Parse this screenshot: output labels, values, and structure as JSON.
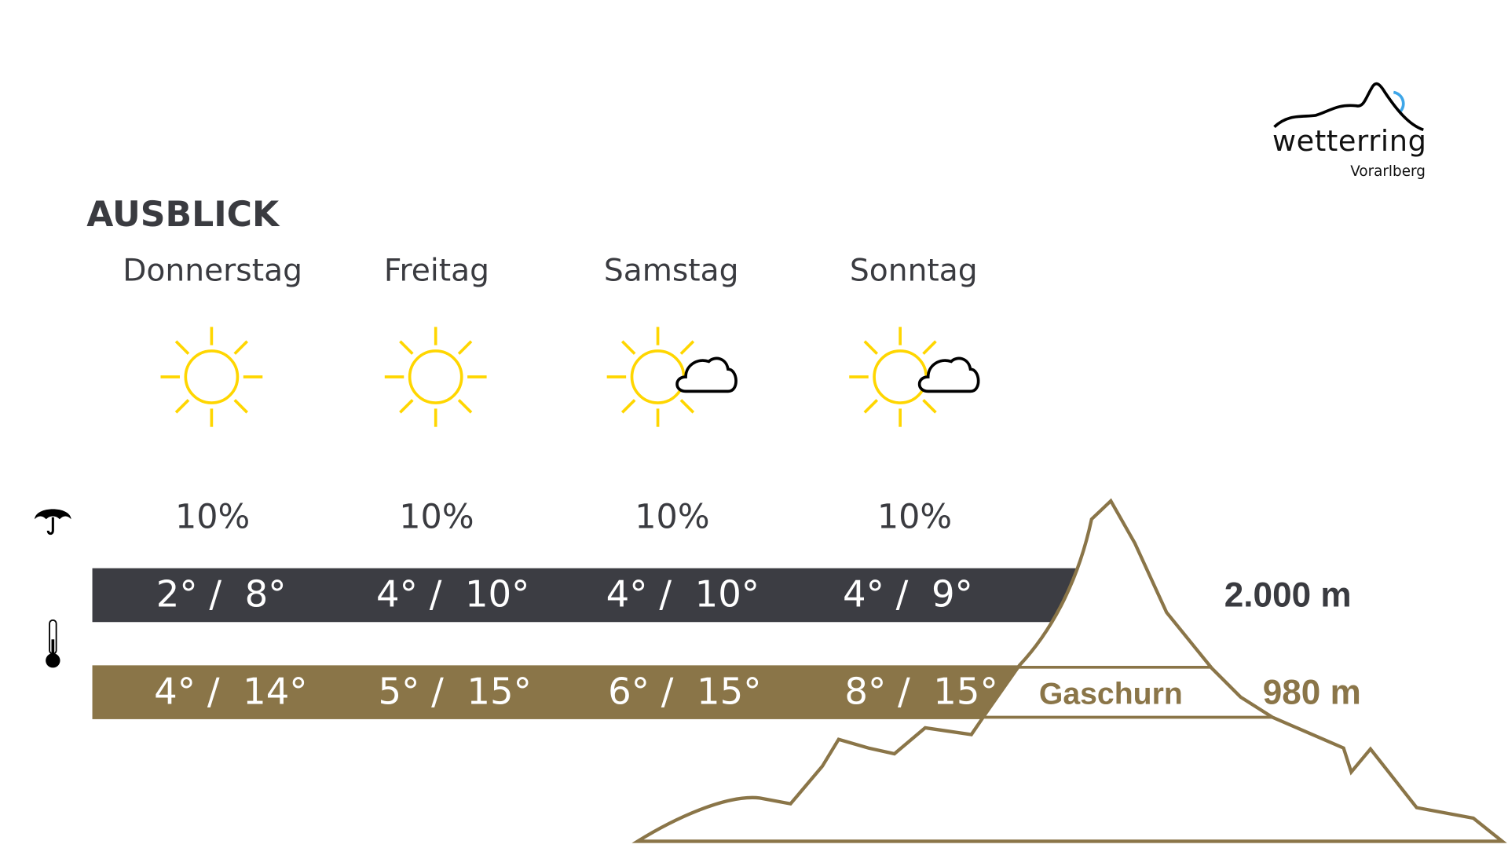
{
  "logo": {
    "name": "wetterring",
    "region": "Vorarlberg",
    "colors": {
      "line": "#000000",
      "sun": "#3ea6e8"
    }
  },
  "title": "AUSBLICK",
  "days": [
    {
      "name": "Donnerstag",
      "icon": "sun-icon",
      "rain": "10%",
      "temp_mountain": "2° /  8°",
      "temp_valley": "4° /  14°"
    },
    {
      "name": "Freitag",
      "icon": "sun-icon",
      "rain": "10%",
      "temp_mountain": "4° /  10°",
      "temp_valley": "5° /  15°"
    },
    {
      "name": "Samstag",
      "icon": "sun-cloud-icon",
      "rain": "10%",
      "temp_mountain": "4° /  10°",
      "temp_valley": "6° /  15°"
    },
    {
      "name": "Sonntag",
      "icon": "sun-cloud-icon",
      "rain": "10%",
      "temp_mountain": "4° /  9°",
      "temp_valley": "8° /  15°"
    }
  ],
  "altitudes": {
    "mountain": "2.000 m",
    "valley": "980 m",
    "location": "Gaschurn"
  },
  "colors": {
    "dark": "#3c3d43",
    "brown": "#8a7548",
    "sun": "#ffd600"
  }
}
